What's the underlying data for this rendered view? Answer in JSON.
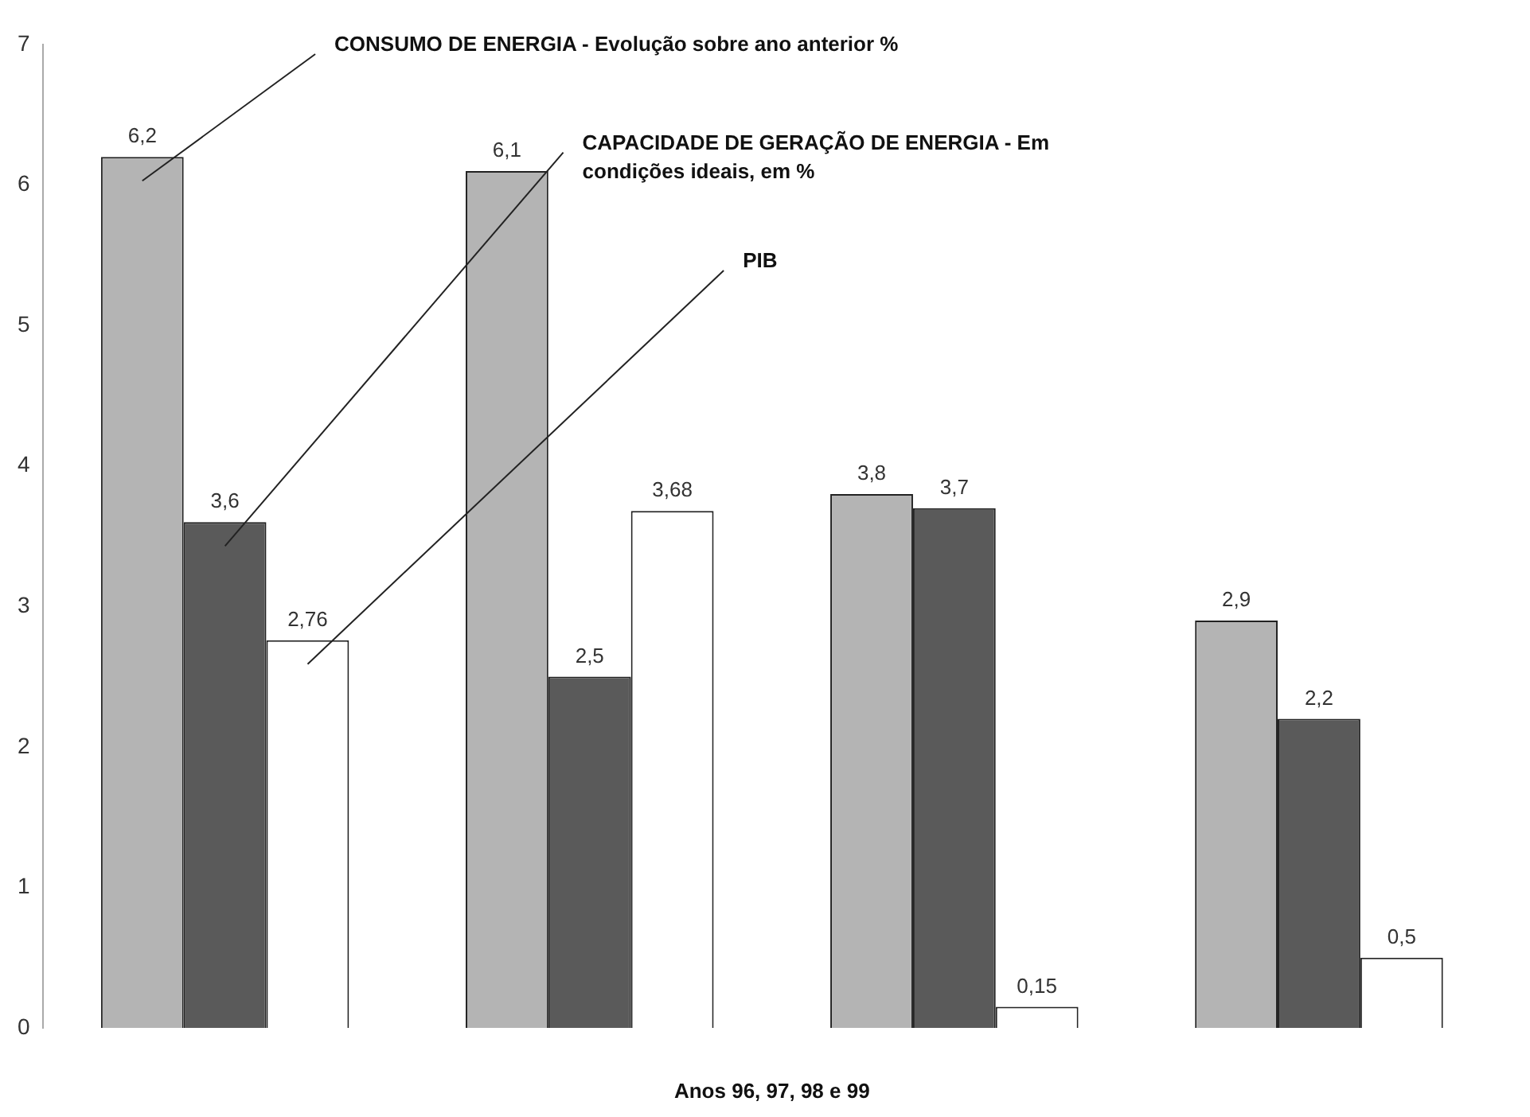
{
  "chart_data": {
    "type": "bar",
    "xlabel": "Anos 96, 97, 98 e 99",
    "categories": [
      null,
      null,
      null,
      null
    ],
    "series": [
      {
        "name": "CONSUMO DE ENERGIA - Evolução sobre ano anterior %",
        "color": "#b4b4b4",
        "values": [
          6.2,
          6.1,
          3.8,
          2.9
        ],
        "value_labels": [
          "6,2",
          "6,1",
          "3,8",
          "2,9"
        ]
      },
      {
        "name": "CAPACIDADE DE GERAÇÃO DE ENERGIA - Em condições ideais, em %",
        "color": "#5a5a5a",
        "values": [
          3.6,
          2.5,
          3.7,
          2.2
        ],
        "value_labels": [
          "3,6",
          "2,5",
          "3,7",
          "2,2"
        ]
      },
      {
        "name": "PIB",
        "color": "#ffffff",
        "values": [
          2.76,
          3.68,
          0.15,
          0.5
        ],
        "value_labels": [
          "2,76",
          "3,68",
          "0,15",
          "0,5"
        ]
      }
    ],
    "ylim": [
      0,
      7
    ],
    "yticks": [
      0,
      1,
      2,
      3,
      4,
      5,
      6,
      7
    ],
    "grid": false,
    "legend": false
  }
}
